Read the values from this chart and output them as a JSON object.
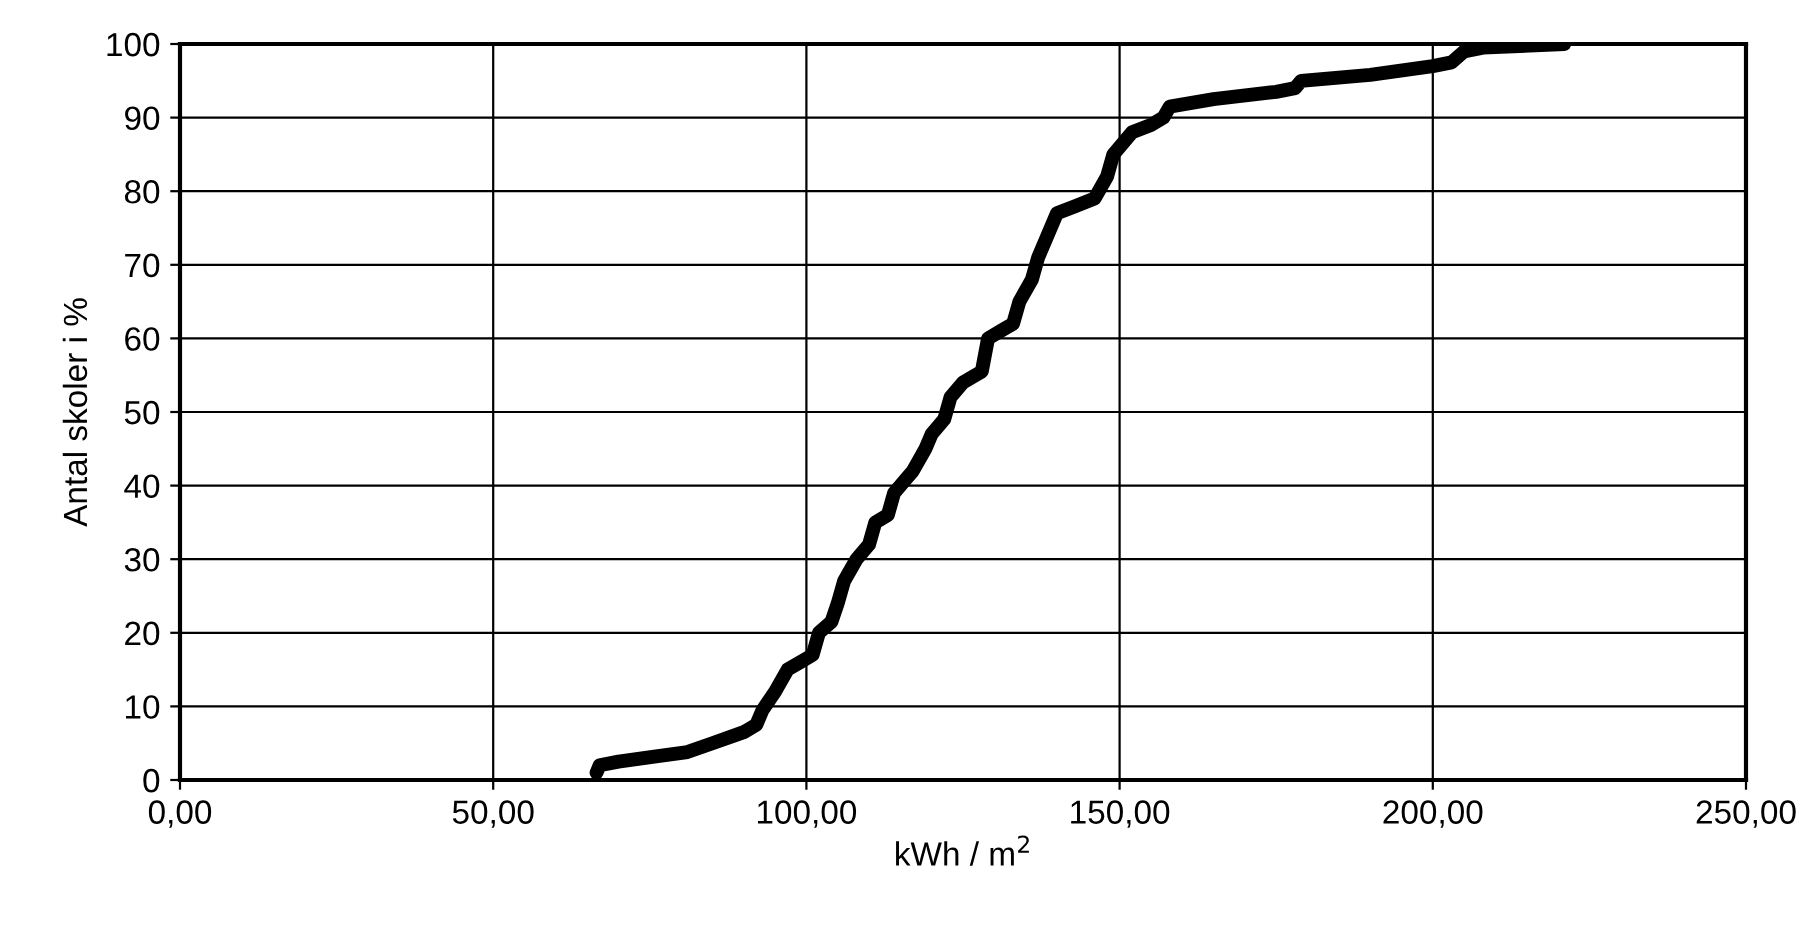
{
  "chart_data": {
    "type": "line",
    "xlabel": "kWh / m$^{2}$",
    "ylabel": "Antal skoler i %",
    "series": [
      {
        "color": "#000000",
        "x": [
          66.5,
          67,
          70,
          76,
          81,
          85,
          90,
          92,
          93,
          95,
          97,
          99,
          101,
          102,
          104,
          105,
          106,
          108,
          110,
          111,
          113,
          114,
          116,
          117,
          119,
          120,
          122,
          123,
          125,
          128,
          129,
          131,
          133,
          134,
          136,
          137,
          139,
          140,
          143,
          146,
          148,
          149,
          152,
          155,
          157,
          158,
          165,
          175,
          178,
          179,
          190,
          200,
          203,
          205,
          208,
          221
        ],
        "values": [
          1,
          2,
          2.5,
          3.2,
          3.8,
          5,
          6.5,
          7.5,
          9.5,
          12,
          15,
          16,
          17,
          20,
          21.5,
          24,
          27,
          30,
          32,
          35,
          36,
          39,
          41,
          42,
          45,
          47,
          49,
          52,
          54,
          55.5,
          60,
          61,
          62,
          65,
          68,
          71,
          75,
          77,
          78,
          79,
          82,
          85,
          88,
          89,
          90,
          91.5,
          92.5,
          93.5,
          94,
          95,
          95.8,
          97,
          97.5,
          99,
          99.5,
          100
        ]
      }
    ],
    "xlim": [
      0,
      250
    ],
    "xticks": [
      {
        "value": 0,
        "label": "0,00"
      },
      {
        "value": 50,
        "label": "50,00"
      },
      {
        "value": 100,
        "label": "100,00"
      },
      {
        "value": 150,
        "label": "150,00"
      },
      {
        "value": 200,
        "label": "200,00"
      },
      {
        "value": 250,
        "label": "250,00"
      }
    ],
    "ylim": [
      0,
      100
    ],
    "yticks": [
      0,
      10,
      20,
      30,
      40,
      50,
      60,
      70,
      80,
      90,
      100
    ],
    "grid": true,
    "marker": "none",
    "line_style": "solid",
    "legend": false
  }
}
